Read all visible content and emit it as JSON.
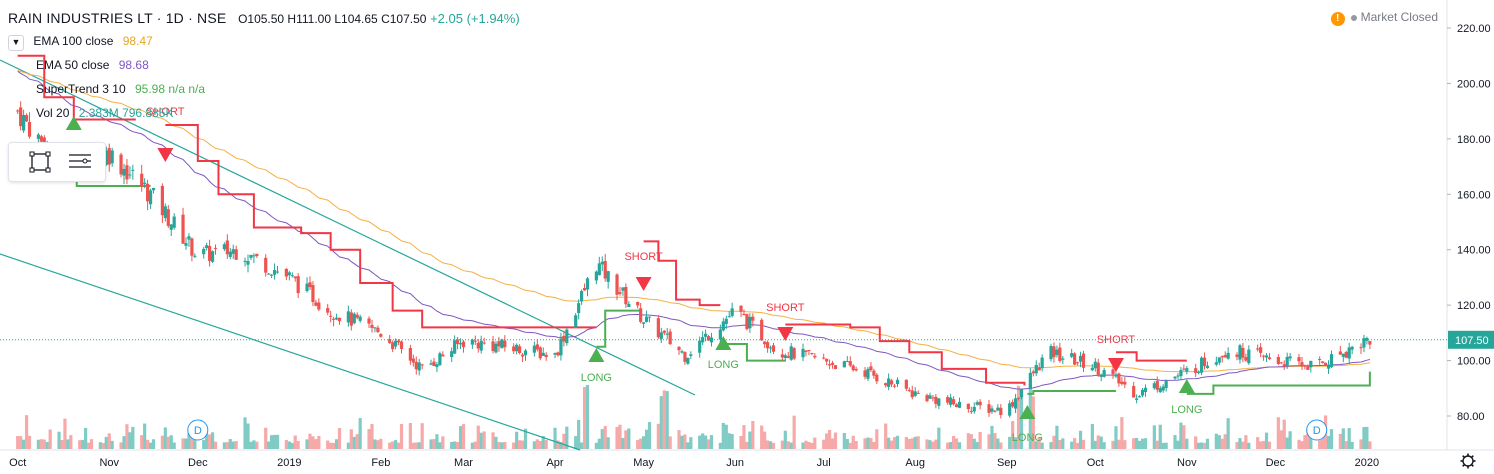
{
  "header": {
    "symbol": "RAIN INDUSTRIES LT · 1D · NSE",
    "ohlc": "O105.50 H111.00 L104.65 C107.50",
    "change": "+2.05 (+1.94%)"
  },
  "indicators": [
    {
      "name": "EMA 100 close",
      "value": "98.47",
      "color": "#e6a623"
    },
    {
      "name": "EMA 50 close",
      "value": "98.68",
      "color": "#7e57c2"
    },
    {
      "name": "SuperTrend 3 10",
      "value": "95.98  n/a  n/a",
      "color": "#4caf50"
    },
    {
      "name": "Vol 20",
      "value": "2.383M  796.885K",
      "color": "#26a69a"
    }
  ],
  "market_status": "Market Closed",
  "price_axis": {
    "ticks": [
      "220.00",
      "200.00",
      "180.00",
      "160.00",
      "140.00",
      "120.00",
      "100.00",
      "80.00"
    ],
    "last_price": "107.50"
  },
  "time_axis": {
    "ticks": [
      "Oct",
      "Nov",
      "Dec",
      "2019",
      "Feb",
      "Mar",
      "Apr",
      "May",
      "Jun",
      "Jul",
      "Aug",
      "Sep",
      "Oct",
      "Nov",
      "Dec",
      "2020"
    ]
  },
  "colors": {
    "up": "#26a69a",
    "down": "#ef5350",
    "supertrend_up": "#4caf50",
    "supertrend_down": "#f23645",
    "ema100": "#f5b041",
    "ema50": "#7e57c2",
    "trendline": "#26a69a"
  },
  "chart_data": {
    "type": "candlestick",
    "title": "RAIN INDUSTRIES LT · 1D · NSE",
    "x_range": [
      "2018-10",
      "2020-01"
    ],
    "ylim": [
      70,
      225
    ],
    "close_series": [
      {
        "date": "2018-10-01",
        "close": 190
      },
      {
        "date": "2018-10-15",
        "close": 170
      },
      {
        "date": "2018-11-01",
        "close": 175
      },
      {
        "date": "2018-11-15",
        "close": 160
      },
      {
        "date": "2018-12-01",
        "close": 138
      },
      {
        "date": "2018-12-15",
        "close": 140
      },
      {
        "date": "2019-01-01",
        "close": 130
      },
      {
        "date": "2019-01-15",
        "close": 118
      },
      {
        "date": "2019-02-01",
        "close": 110
      },
      {
        "date": "2019-02-15",
        "close": 97
      },
      {
        "date": "2019-03-01",
        "close": 107
      },
      {
        "date": "2019-03-15",
        "close": 105
      },
      {
        "date": "2019-04-01",
        "close": 102
      },
      {
        "date": "2019-04-15",
        "close": 135
      },
      {
        "date": "2019-05-01",
        "close": 115
      },
      {
        "date": "2019-05-15",
        "close": 102
      },
      {
        "date": "2019-06-01",
        "close": 118
      },
      {
        "date": "2019-06-15",
        "close": 104
      },
      {
        "date": "2019-07-01",
        "close": 100
      },
      {
        "date": "2019-07-15",
        "close": 96
      },
      {
        "date": "2019-08-01",
        "close": 88
      },
      {
        "date": "2019-08-15",
        "close": 84
      },
      {
        "date": "2019-09-01",
        "close": 82
      },
      {
        "date": "2019-09-15",
        "close": 103
      },
      {
        "date": "2019-10-01",
        "close": 98
      },
      {
        "date": "2019-10-15",
        "close": 88
      },
      {
        "date": "2019-11-01",
        "close": 96
      },
      {
        "date": "2019-11-15",
        "close": 104
      },
      {
        "date": "2019-12-01",
        "close": 100
      },
      {
        "date": "2019-12-15",
        "close": 98
      },
      {
        "date": "2020-01-01",
        "close": 107.5
      }
    ],
    "signals": [
      {
        "label": "SHORT",
        "date": "2018-11-20",
        "type": "short"
      },
      {
        "label": "LONG",
        "date": "2019-04-15",
        "type": "long"
      },
      {
        "label": "SHORT",
        "date": "2019-05-01",
        "type": "short"
      },
      {
        "label": "LONG",
        "date": "2019-05-28",
        "type": "long"
      },
      {
        "label": "SHORT",
        "date": "2019-06-18",
        "type": "short"
      },
      {
        "label": "LONG",
        "date": "2019-09-08",
        "type": "long"
      },
      {
        "label": "SHORT",
        "date": "2019-10-08",
        "type": "short"
      },
      {
        "label": "LONG",
        "date": "2019-11-01",
        "type": "long"
      }
    ]
  }
}
